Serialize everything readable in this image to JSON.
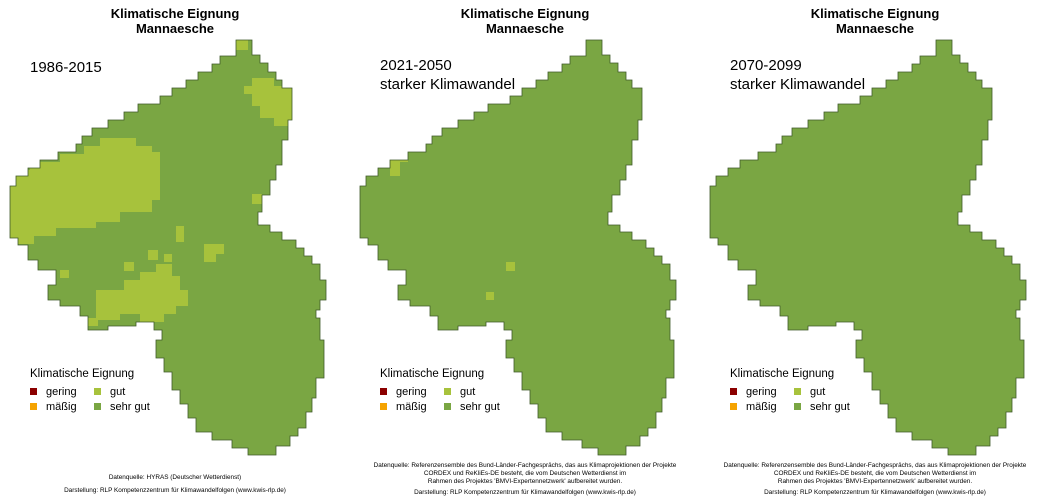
{
  "colors": {
    "gering": "#8b0000",
    "maessig": "#f5a300",
    "gut": "#a7c23c",
    "sehr_gut": "#7aa643",
    "border": "#3f5a2a"
  },
  "legend": {
    "title": "Klimatische Eignung",
    "items": [
      {
        "label": "gering",
        "color": "#8b0000"
      },
      {
        "label": "gut",
        "color": "#a7c23c"
      },
      {
        "label": "mäßig",
        "color": "#f5a300"
      },
      {
        "label": "sehr gut",
        "color": "#7aa643"
      }
    ]
  },
  "panels": [
    {
      "title_line1": "Klimatische Eignung",
      "title_line2": "Mannaesche",
      "period_line1": "1986-2015",
      "period_line2": "",
      "source_lines": [
        "Datenquelle: HYRAS (Deutscher Wetterdienst)",
        "",
        "Darstellung: RLP Kompetenzzentrum für Klimawandelfolgen (www.kwis-rlp.de)"
      ]
    },
    {
      "title_line1": "Klimatische Eignung",
      "title_line2": "Mannaesche",
      "period_line1": "2021-2050",
      "period_line2": "starker Klimawandel",
      "source_lines": [
        "Datenquelle: Referenzensemble des Bund-Länder-Fachgesprächs, das aus Klimaprojektionen der Projekte",
        "CORDEX und ReKliEs-DE besteht, die vom Deutschen Wetterdienst im",
        "Rahmen des Projektes 'BMVI-Expertennetzwerk' aufbereitet wurden.",
        "Darstellung: RLP Kompetenzzentrum für Klimawandelfolgen (www.kwis-rlp.de)"
      ]
    },
    {
      "title_line1": "Klimatische Eignung",
      "title_line2": "Mannaesche",
      "period_line1": "2070-2099",
      "period_line2": "starker Klimawandel",
      "source_lines": [
        "Datenquelle: Referenzensemble des Bund-Länder-Fachgesprächs, das aus Klimaprojektionen der Projekte",
        "CORDEX und ReKliEs-DE besteht, die vom Deutschen Wetterdienst im",
        "Rahmen des Projektes 'BMVI-Expertennetzwerk' aufbereitet wurden.",
        "Darstellung: RLP Kompetenzzentrum für Klimawandelfolgen (www.kwis-rlp.de)"
      ]
    }
  ]
}
